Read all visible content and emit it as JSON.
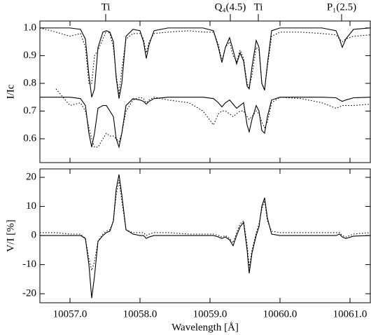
{
  "chart_data": [
    {
      "type": "line",
      "ylabel": "I/Ic",
      "xlim": [
        10056.57,
        10061.29
      ],
      "ylim": [
        0.514,
        1.025
      ],
      "yticks": [
        0.6,
        0.7,
        0.8,
        0.9,
        {
          "value": 1,
          "label": "1.0"
        }
      ],
      "annotations": [
        {
          "text": "Ti",
          "x": 10057.51
        },
        {
          "text": "Q₄(4.5)",
          "x": 10059.29
        },
        {
          "text": "Ti",
          "x": 10059.69
        },
        {
          "text": "P₁(2.5)",
          "x": 10060.88
        }
      ],
      "x": [
        10056.57,
        10056.8,
        10057.0,
        10057.15,
        10057.22,
        10057.27,
        10057.31,
        10057.35,
        10057.4,
        10057.47,
        10057.52,
        10057.57,
        10057.62,
        10057.66,
        10057.7,
        10057.74,
        10057.8,
        10057.9,
        10058.0,
        10058.05,
        10058.09,
        10058.13,
        10058.2,
        10058.4,
        10058.7,
        10058.9,
        10059.05,
        10059.12,
        10059.17,
        10059.22,
        10059.28,
        10059.33,
        10059.38,
        10059.43,
        10059.48,
        10059.53,
        10059.56,
        10059.6,
        10059.66,
        10059.7,
        10059.74,
        10059.78,
        10059.82,
        10059.88,
        10060.0,
        10060.3,
        10060.6,
        10060.8,
        10060.85,
        10060.89,
        10060.94,
        10061.05,
        10061.29
      ],
      "series": [
        {
          "color": "#000000",
          "line_style": "solid",
          "values": [
            1.0,
            1.0,
            1.0,
            0.995,
            0.96,
            0.83,
            0.75,
            0.78,
            0.93,
            0.985,
            0.99,
            0.985,
            0.95,
            0.82,
            0.745,
            0.8,
            0.97,
            0.995,
            0.99,
            0.95,
            0.89,
            0.94,
            0.99,
            1.0,
            1.0,
            1.0,
            0.99,
            0.93,
            0.875,
            0.93,
            0.965,
            0.92,
            0.87,
            0.91,
            0.88,
            0.79,
            0.78,
            0.86,
            0.955,
            0.93,
            0.8,
            0.775,
            0.87,
            0.99,
            1.0,
            1.0,
            1.0,
            0.99,
            0.96,
            0.93,
            0.96,
            0.995,
            1.0
          ]
        },
        {
          "color": "#000000",
          "line_style": "dotted",
          "values": [
            1.0,
            0.985,
            0.97,
            0.98,
            0.93,
            0.8,
            0.8,
            0.9,
            0.92,
            0.96,
            0.99,
            0.98,
            0.93,
            0.83,
            0.76,
            0.85,
            0.96,
            0.98,
            0.98,
            0.96,
            0.91,
            0.95,
            0.98,
            0.985,
            0.99,
            0.985,
            0.985,
            0.94,
            0.88,
            0.93,
            0.95,
            0.9,
            0.88,
            0.92,
            0.89,
            0.8,
            0.785,
            0.83,
            0.93,
            0.92,
            0.8,
            0.78,
            0.86,
            0.97,
            0.985,
            0.985,
            0.98,
            0.975,
            0.96,
            0.95,
            0.96,
            0.97,
            0.975
          ]
        },
        {
          "color": "#000000",
          "line_style": "solid",
          "values": [
            0.75,
            0.75,
            0.75,
            0.745,
            0.72,
            0.62,
            0.57,
            0.62,
            0.71,
            0.72,
            0.72,
            0.7,
            0.68,
            0.6,
            0.57,
            0.62,
            0.72,
            0.745,
            0.74,
            0.735,
            0.725,
            0.735,
            0.745,
            0.75,
            0.75,
            0.75,
            0.745,
            0.73,
            0.715,
            0.73,
            0.74,
            0.725,
            0.71,
            0.72,
            0.73,
            0.65,
            0.625,
            0.67,
            0.72,
            0.7,
            0.63,
            0.62,
            0.68,
            0.74,
            0.75,
            0.75,
            0.75,
            0.748,
            0.74,
            0.735,
            0.74,
            0.748,
            0.75
          ]
        },
        {
          "color": "#000000",
          "line_style": "dotted",
          "values": [
            null,
            0.78,
            0.72,
            0.73,
            0.7,
            0.64,
            0.6,
            0.57,
            0.57,
            0.6,
            0.62,
            0.61,
            0.61,
            0.6,
            0.59,
            0.62,
            0.7,
            0.74,
            0.75,
            0.745,
            0.73,
            0.74,
            0.75,
            0.74,
            0.73,
            0.7,
            0.65,
            0.69,
            0.7,
            0.7,
            0.69,
            0.68,
            0.69,
            0.7,
            0.7,
            0.68,
            0.67,
            0.68,
            0.7,
            0.69,
            0.66,
            0.64,
            0.66,
            0.73,
            0.75,
            0.745,
            0.73,
            0.71,
            0.715,
            0.72,
            0.72,
            0.72,
            0.725
          ]
        }
      ]
    },
    {
      "type": "line",
      "ylabel": "V/I [%]",
      "xlabel": "Wavelength [Å]",
      "xlim": [
        10056.57,
        10061.29
      ],
      "ylim": [
        -23.1,
        22.9
      ],
      "xticks": [
        {
          "value": 10057,
          "label": "10057.0"
        },
        {
          "value": 10058,
          "label": "10058.0"
        },
        {
          "value": 10059,
          "label": "10059.0"
        },
        {
          "value": 10060,
          "label": "10060.0"
        },
        {
          "value": 10061,
          "label": "10061.0"
        }
      ],
      "yticks": [
        -20,
        -10,
        0,
        10,
        20
      ],
      "x": [
        10056.57,
        10056.8,
        10057.0,
        10057.15,
        10057.22,
        10057.27,
        10057.31,
        10057.35,
        10057.4,
        10057.47,
        10057.52,
        10057.57,
        10057.62,
        10057.66,
        10057.7,
        10057.74,
        10057.8,
        10057.9,
        10058.0,
        10058.05,
        10058.09,
        10058.13,
        10058.2,
        10058.4,
        10058.7,
        10058.9,
        10059.05,
        10059.12,
        10059.17,
        10059.22,
        10059.28,
        10059.33,
        10059.38,
        10059.43,
        10059.48,
        10059.53,
        10059.56,
        10059.6,
        10059.66,
        10059.7,
        10059.74,
        10059.78,
        10059.82,
        10059.88,
        10060.0,
        10060.3,
        10060.6,
        10060.8,
        10060.85,
        10060.89,
        10060.94,
        10061.05,
        10061.29
      ],
      "series": [
        {
          "color": "#000000",
          "line_style": "solid",
          "values": [
            0,
            0,
            0,
            0,
            -1,
            -10,
            -21.5,
            -14,
            -2,
            0,
            1,
            1.5,
            5,
            16,
            21,
            14,
            2,
            0.5,
            0,
            0,
            -1,
            -0.5,
            0,
            0,
            0,
            0,
            0,
            -0.5,
            -1,
            -0.5,
            -1.5,
            -3.5,
            0,
            3,
            4.5,
            -5,
            -13,
            -6,
            0,
            3,
            10,
            13,
            6,
            0.5,
            0,
            0,
            0,
            0,
            0.5,
            -0.5,
            -1,
            -0.2,
            0
          ]
        },
        {
          "color": "#000000",
          "line_style": "dotted",
          "values": [
            1,
            1,
            0.5,
            0.5,
            -1,
            -8,
            -12,
            -9,
            -2,
            0.5,
            1.5,
            2,
            5,
            14,
            19,
            12,
            2,
            1,
            1,
            1,
            0,
            0.5,
            1,
            1,
            0.5,
            0.5,
            0.5,
            0,
            -0.5,
            0,
            -1,
            -2.5,
            1,
            4,
            5,
            -3,
            -11,
            -5,
            1,
            4,
            9,
            12,
            5,
            1.5,
            1,
            1,
            1,
            1,
            1,
            0,
            -0.5,
            0.5,
            1
          ]
        }
      ]
    }
  ]
}
